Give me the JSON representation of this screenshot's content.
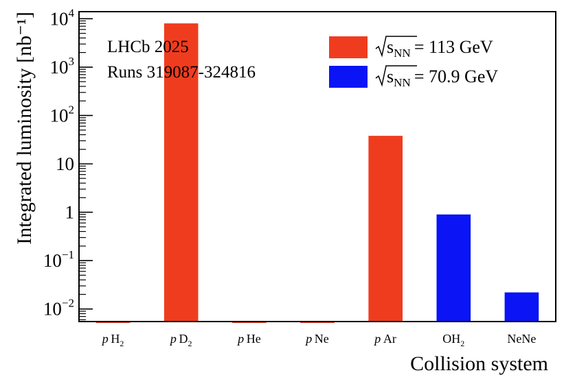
{
  "chart_data": {
    "type": "bar",
    "title": "",
    "xlabel": "Collision system",
    "ylabel": "Integrated luminosity [nb⁻¹]",
    "yscale": "log",
    "ylim": [
      0.0055,
      14000
    ],
    "yticks": [
      {
        "value": 0.01,
        "base": "10",
        "exp": "−2"
      },
      {
        "value": 0.1,
        "base": "10",
        "exp": "−1"
      },
      {
        "value": 1,
        "base": "1",
        "exp": ""
      },
      {
        "value": 10,
        "base": "10",
        "exp": ""
      },
      {
        "value": 100,
        "base": "10",
        "exp": "2"
      },
      {
        "value": 1000,
        "base": "10",
        "exp": "3"
      },
      {
        "value": 10000,
        "base": "10",
        "exp": "4"
      }
    ],
    "categories": [
      {
        "pre": "p",
        "main": "H",
        "sub": "2"
      },
      {
        "pre": "p",
        "main": "D",
        "sub": "2"
      },
      {
        "pre": "p",
        "main": "He",
        "sub": ""
      },
      {
        "pre": "p",
        "main": "Ne",
        "sub": ""
      },
      {
        "pre": "p",
        "main": "Ar",
        "sub": ""
      },
      {
        "pre": "",
        "main": "OH",
        "sub": "2"
      },
      {
        "pre": "",
        "main": "NeNe",
        "sub": ""
      }
    ],
    "values": [
      0.0055,
      8000,
      0.0055,
      0.0055,
      38,
      0.9,
      0.022
    ],
    "bar_series": [
      0,
      0,
      0,
      0,
      0,
      1,
      1
    ],
    "series": [
      {
        "name": "113 GeV",
        "label_prefix": "s",
        "label_sub": "NN",
        "label_eq": "= ",
        "color": "#f03c1e"
      },
      {
        "name": "70.9 GeV",
        "label_prefix": "s",
        "label_sub": "NN",
        "label_eq": "= ",
        "color": "#0a14f5"
      }
    ],
    "legend_position": "top-right",
    "annotations": [
      "LHCb 2025",
      "Runs 319087-324816"
    ],
    "grid": false
  }
}
